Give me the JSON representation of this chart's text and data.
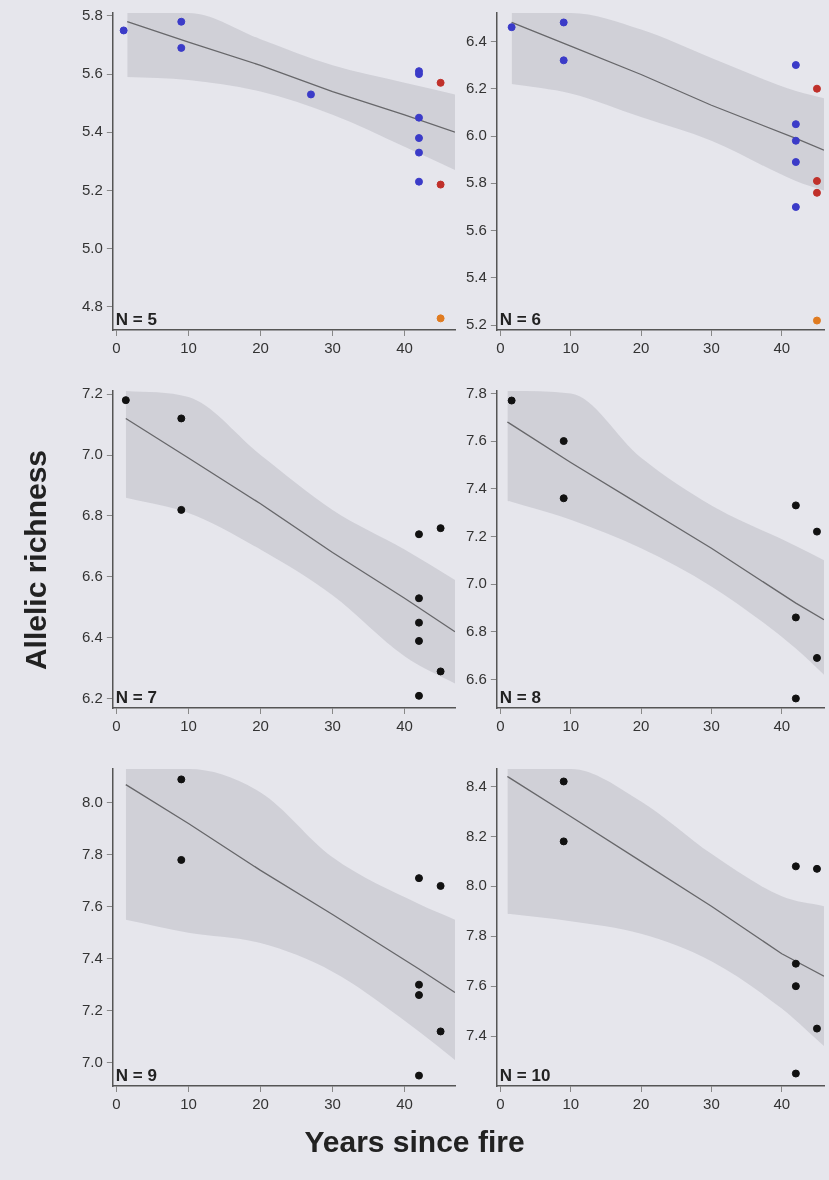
{
  "chart_data": [
    {
      "type": "scatter",
      "marker": "circle",
      "annotations": [
        "N = 5"
      ],
      "xlim": [
        -0.5,
        47
      ],
      "xticks": [
        0,
        10,
        20,
        30,
        40
      ],
      "ylim": [
        4.72,
        5.81
      ],
      "yticks": [
        4.8,
        {
          "value": 5,
          "label": "5.0"
        },
        5.2,
        5.4,
        5.6,
        5.8
      ],
      "series": [
        {
          "color": "#3b3bc8",
          "x": [
            1,
            9,
            9,
            27,
            42,
            42,
            42,
            42,
            42,
            42
          ],
          "values": [
            5.75,
            5.78,
            5.69,
            5.53,
            5.61,
            5.6,
            5.45,
            5.38,
            5.33,
            5.23
          ]
        },
        {
          "color": "#c0302a",
          "x": [
            45,
            45
          ],
          "values": [
            5.57,
            5.22
          ]
        },
        {
          "color": "#e07b20",
          "x": [
            45
          ],
          "values": [
            4.76
          ]
        },
        {
          "type": "line",
          "marker": "none",
          "color": "#555555",
          "x": [
            1.5,
            10,
            20,
            30,
            40,
            47
          ],
          "values": [
            5.78,
            5.71,
            5.63,
            5.54,
            5.46,
            5.4
          ],
          "lower": [
            5.59,
            5.58,
            5.54,
            5.46,
            5.35,
            5.27
          ],
          "upper": [
            5.81,
            5.81,
            5.72,
            5.63,
            5.57,
            5.53
          ]
        }
      ]
    },
    {
      "type": "scatter",
      "marker": "circle",
      "annotations": [
        "N = 6"
      ],
      "xlim": [
        -0.5,
        46
      ],
      "xticks": [
        0,
        10,
        20,
        30,
        40
      ],
      "ylim": [
        5.18,
        6.52
      ],
      "yticks": [
        5.2,
        5.4,
        5.6,
        5.8,
        {
          "value": 6,
          "label": "6.0"
        },
        6.2,
        6.4
      ],
      "series": [
        {
          "color": "#3b3bc8",
          "x": [
            1.6,
            9,
            9,
            42,
            42,
            42,
            42,
            42
          ],
          "values": [
            6.46,
            6.48,
            6.32,
            6.3,
            6.05,
            5.98,
            5.89,
            5.7
          ]
        },
        {
          "color": "#c0302a",
          "x": [
            45,
            45,
            45
          ],
          "values": [
            6.2,
            5.81,
            5.76
          ]
        },
        {
          "color": "#e07b20",
          "x": [
            45
          ],
          "values": [
            5.22
          ]
        },
        {
          "type": "line",
          "marker": "none",
          "color": "#555555",
          "x": [
            1.6,
            10,
            20,
            30,
            42,
            46
          ],
          "values": [
            6.48,
            6.38,
            6.26,
            6.13,
            5.99,
            5.94
          ],
          "lower": [
            6.22,
            6.18,
            6.08,
            5.98,
            5.81,
            5.77
          ],
          "upper": [
            6.52,
            6.52,
            6.45,
            6.33,
            6.19,
            6.16
          ]
        }
      ]
    },
    {
      "type": "scatter",
      "marker": "circle",
      "ylabel": "Allelic richness",
      "annotations": [
        "N = 7"
      ],
      "xlim": [
        -0.5,
        47
      ],
      "xticks": [
        0,
        10,
        20,
        30,
        40
      ],
      "ylim": [
        6.17,
        7.21
      ],
      "yticks": [
        6.2,
        6.4,
        6.6,
        6.8,
        {
          "value": 7,
          "label": "7.0"
        },
        7.2
      ],
      "series": [
        {
          "color": "#111111",
          "x": [
            1.3,
            9,
            9,
            42,
            45,
            42,
            42,
            42,
            45,
            42
          ],
          "values": [
            7.18,
            7.12,
            6.82,
            6.74,
            6.76,
            6.53,
            6.45,
            6.39,
            6.29,
            6.21
          ]
        },
        {
          "type": "line",
          "marker": "none",
          "color": "#555555",
          "x": [
            1.3,
            10,
            20,
            30,
            40,
            47
          ],
          "values": [
            7.12,
            6.99,
            6.84,
            6.68,
            6.53,
            6.42
          ],
          "lower": [
            6.86,
            6.81,
            6.69,
            6.54,
            6.34,
            6.25
          ],
          "upper": [
            7.21,
            7.19,
            7.0,
            6.82,
            6.69,
            6.59
          ]
        }
      ]
    },
    {
      "type": "scatter",
      "marker": "circle",
      "annotations": [
        "N = 8"
      ],
      "xlim": [
        -0.5,
        46
      ],
      "xticks": [
        0,
        10,
        20,
        30,
        40
      ],
      "ylim": [
        6.48,
        7.81
      ],
      "yticks": [
        6.6,
        6.8,
        {
          "value": 7,
          "label": "7.0"
        },
        7.2,
        7.4,
        7.6,
        7.8
      ],
      "series": [
        {
          "color": "#111111",
          "x": [
            1.6,
            9,
            9,
            42,
            45,
            42,
            45,
            42
          ],
          "values": [
            7.77,
            7.6,
            7.36,
            7.33,
            7.22,
            6.86,
            6.69,
            6.52
          ]
        },
        {
          "type": "line",
          "marker": "none",
          "color": "#555555",
          "x": [
            1,
            10,
            20,
            30,
            42,
            46
          ],
          "values": [
            7.68,
            7.51,
            7.33,
            7.15,
            6.92,
            6.85
          ],
          "lower": [
            7.35,
            7.27,
            7.15,
            6.99,
            6.73,
            6.62
          ],
          "upper": [
            7.81,
            7.8,
            7.53,
            7.33,
            7.16,
            7.1
          ]
        }
      ]
    },
    {
      "type": "scatter",
      "marker": "circle",
      "xlabel": "Years since fire",
      "annotations": [
        "N = 9"
      ],
      "xlim": [
        -0.5,
        47
      ],
      "xticks": [
        0,
        10,
        20,
        30,
        40
      ],
      "ylim": [
        6.91,
        8.13
      ],
      "yticks": [
        {
          "value": 7,
          "label": "7.0"
        },
        7.2,
        7.4,
        7.6,
        7.8,
        {
          "value": 8,
          "label": "8.0"
        }
      ],
      "series": [
        {
          "color": "#111111",
          "x": [
            9,
            9,
            42,
            45,
            42,
            42,
            45,
            42
          ],
          "values": [
            8.09,
            7.78,
            7.71,
            7.68,
            7.3,
            7.26,
            7.12,
            6.95
          ]
        },
        {
          "type": "line",
          "marker": "none",
          "color": "#555555",
          "x": [
            1.3,
            10,
            20,
            30,
            42,
            47
          ],
          "values": [
            8.07,
            7.92,
            7.74,
            7.57,
            7.36,
            7.27
          ],
          "lower": [
            7.55,
            7.5,
            7.46,
            7.35,
            7.12,
            7.01
          ],
          "upper": [
            8.13,
            8.13,
            8.04,
            7.79,
            7.61,
            7.55
          ]
        }
      ]
    },
    {
      "type": "scatter",
      "marker": "circle",
      "annotations": [
        "N = 10"
      ],
      "xlim": [
        -0.5,
        46
      ],
      "xticks": [
        0,
        10,
        20,
        30,
        40
      ],
      "ylim": [
        7.2,
        8.47
      ],
      "yticks": [
        7.4,
        7.6,
        7.8,
        {
          "value": 8,
          "label": "8.0"
        },
        8.2,
        8.4
      ],
      "series": [
        {
          "color": "#111111",
          "x": [
            9,
            9,
            42,
            45,
            42,
            42,
            45,
            42
          ],
          "values": [
            8.42,
            8.18,
            8.08,
            8.07,
            7.69,
            7.6,
            7.43,
            7.25
          ]
        },
        {
          "type": "line",
          "marker": "none",
          "color": "#555555",
          "x": [
            1,
            10,
            20,
            30,
            40,
            46
          ],
          "values": [
            8.44,
            8.28,
            8.1,
            7.92,
            7.73,
            7.64
          ],
          "lower": [
            7.89,
            7.86,
            7.81,
            7.7,
            7.51,
            7.36
          ],
          "upper": [
            8.47,
            8.47,
            8.34,
            8.13,
            7.96,
            7.92
          ]
        }
      ]
    }
  ]
}
